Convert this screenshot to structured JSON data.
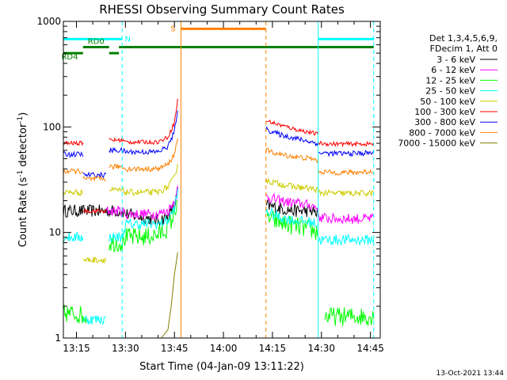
{
  "chart_data": {
    "type": "line",
    "title": "RHESSI Observing Summary Count Rates",
    "xlabel": "Start Time (04-Jan-09 13:11:22)",
    "ylabel_main": "Count Rate (s",
    "ylabel_sup1": "-1",
    "ylabel_mid": " detector",
    "ylabel_sup2": "-1",
    "ylabel_end": ")",
    "y_scale": "log",
    "xlim": [
      "13:11",
      "14:48"
    ],
    "ylim": [
      1,
      1000
    ],
    "x_ticks": [
      "13:15",
      "13:30",
      "13:45",
      "14:00",
      "14:15",
      "14:30",
      "14:45"
    ],
    "y_ticks": [
      {
        "value": 1,
        "label": "1"
      },
      {
        "value": 10,
        "label": "10"
      },
      {
        "value": 100,
        "label": "100"
      },
      {
        "value": 1000,
        "label": "1000"
      }
    ],
    "legend_header": [
      "Det 1,3,4,5,6,9,",
      "FDecim 1, Att 0"
    ],
    "legend_position": "right",
    "timestamp": "13-Oct-2021 13:44",
    "flags": [
      {
        "label": "N",
        "color": "#00ffff",
        "segments": [
          [
            "13:11",
            "13:29"
          ],
          [
            "14:29",
            "14:46"
          ]
        ],
        "level": 680
      },
      {
        "label": "S",
        "color": "#ff8000",
        "segments": [
          [
            "13:47",
            "14:13"
          ]
        ],
        "level": 850
      },
      {
        "label": "RD0",
        "color": "#008000",
        "segments": [
          [
            "13:17",
            "13:25"
          ]
        ],
        "level": 570
      },
      {
        "label": "RD4",
        "color": "#008000",
        "segments": [
          [
            "13:11",
            "13:17"
          ],
          [
            "13:25",
            "13:28"
          ]
        ],
        "level": 500
      },
      {
        "label": "",
        "color": "#008000",
        "segments": [
          [
            "13:28",
            "14:46"
          ]
        ],
        "level": 570
      }
    ],
    "vlines": [
      {
        "time": "13:29",
        "color": "#00ffff",
        "style": "dashed"
      },
      {
        "time": "14:46",
        "color": "#00ffff",
        "style": "dashed"
      },
      {
        "time": "13:11",
        "color": "#00ffff",
        "style": "solid"
      },
      {
        "time": "14:29",
        "color": "#00ffff",
        "style": "solid"
      },
      {
        "time": "13:47",
        "color": "#ff8000",
        "style": "solid"
      },
      {
        "time": "14:13",
        "color": "#ff8000",
        "style": "dashed"
      }
    ],
    "series": [
      {
        "name": "3 - 6 keV",
        "color": "#000000",
        "noise": 0.06,
        "segments": [
          {
            "x": [
              "13:11",
              "13:17",
              "13:17",
              "13:24",
              "13:25",
              "13:29",
              "13:30",
              "13:35",
              "13:40",
              "13:43",
              "13:45",
              "13:46"
            ],
            "y": [
              16,
              16,
              16,
              16,
              16,
              16,
              15,
              14,
              13,
              14,
              18,
              24
            ]
          },
          {
            "x": [
              "14:13",
              "14:17",
              "14:22",
              "14:27",
              "14:29"
            ],
            "y": [
              18,
              17,
              16,
              16,
              15
            ]
          }
        ]
      },
      {
        "name": "6 - 12 keV",
        "color": "#ff00ff",
        "noise": 0.05,
        "segments": [
          {
            "x": [
              "13:24",
              "13:29",
              "13:30",
              "13:35",
              "13:40",
              "13:43",
              "13:45",
              "13:46"
            ],
            "y": [
              16,
              16,
              15,
              15,
              15,
              16,
              20,
              26
            ]
          },
          {
            "x": [
              "14:13",
              "14:17",
              "14:22",
              "14:27",
              "14:29"
            ],
            "y": [
              22,
              20,
              19,
              18,
              17
            ]
          },
          {
            "x": [
              "14:29",
              "14:33",
              "14:40",
              "14:46"
            ],
            "y": [
              14,
              13.5,
              13.5,
              13.5
            ]
          }
        ]
      },
      {
        "name": "12 - 25 keV",
        "color": "#00ff00",
        "noise": 0.09,
        "segments": [
          {
            "x": [
              "13:11",
              "13:15",
              "13:18"
            ],
            "y": [
              1.7,
              1.7,
              1.6
            ]
          },
          {
            "x": [
              "13:25",
              "13:29",
              "13:30",
              "13:35",
              "13:40",
              "13:43",
              "13:45",
              "13:46"
            ],
            "y": [
              8,
              8,
              9,
              9,
              9.5,
              11,
              15,
              22
            ]
          },
          {
            "x": [
              "14:13",
              "14:17",
              "14:22",
              "14:27",
              "14:29"
            ],
            "y": [
              14,
              12.5,
              11.5,
              10.5,
              10
            ]
          },
          {
            "x": [
              "14:31",
              "14:35",
              "14:40",
              "14:46"
            ],
            "y": [
              1.6,
              1.6,
              1.6,
              1.6
            ]
          }
        ]
      },
      {
        "name": "25 - 50 keV",
        "color": "#00ffff",
        "noise": 0.05,
        "segments": [
          {
            "x": [
              "13:11",
              "13:17"
            ],
            "y": [
              9,
              9
            ]
          },
          {
            "x": [
              "13:17",
              "13:20",
              "13:24"
            ],
            "y": [
              1.5,
              1.5,
              1.5
            ]
          },
          {
            "x": [
              "13:25",
              "13:29",
              "13:30",
              "13:35",
              "13:40",
              "13:43",
              "13:45",
              "13:46"
            ],
            "y": [
              9,
              9,
              12,
              12,
              12,
              13,
              17,
              24
            ]
          },
          {
            "x": [
              "14:13",
              "14:17",
              "14:22",
              "14:27",
              "14:29"
            ],
            "y": [
              16,
              14,
              13,
              12.5,
              12
            ]
          },
          {
            "x": [
              "14:29",
              "14:33",
              "14:40",
              "14:46"
            ],
            "y": [
              8.5,
              8.5,
              8.5,
              8.5
            ]
          }
        ]
      },
      {
        "name": "50 - 100 keV",
        "color": "#cccc00",
        "noise": 0.03,
        "segments": [
          {
            "x": [
              "13:11",
              "13:17"
            ],
            "y": [
              24,
              24
            ]
          },
          {
            "x": [
              "13:17",
              "13:24"
            ],
            "y": [
              5.5,
              5.5
            ]
          },
          {
            "x": [
              "13:25",
              "13:29",
              "13:30",
              "13:35",
              "13:40",
              "13:43",
              "13:45",
              "13:46"
            ],
            "y": [
              25,
              25,
              24,
              24,
              24,
              27,
              33,
              45
            ]
          },
          {
            "x": [
              "14:13",
              "14:17",
              "14:22",
              "14:27",
              "14:29"
            ],
            "y": [
              31,
              29,
              27,
              26,
              25
            ]
          },
          {
            "x": [
              "14:29",
              "14:33",
              "14:40",
              "14:46"
            ],
            "y": [
              24,
              23.5,
              23.5,
              23.5
            ]
          }
        ]
      },
      {
        "name": "100 - 300 keV",
        "color": "#ff0000",
        "noise": 0.02,
        "segments": [
          {
            "x": [
              "13:11",
              "13:17"
            ],
            "y": [
              70,
              70
            ]
          },
          {
            "x": [
              "13:17",
              "13:24"
            ],
            "y": [
              16,
              16
            ]
          },
          {
            "x": [
              "13:25",
              "13:29",
              "13:30",
              "13:35",
              "13:40",
              "13:43",
              "13:45",
              "13:46"
            ],
            "y": [
              75,
              75,
              72,
              72,
              72,
              80,
              110,
              180
            ]
          },
          {
            "x": [
              "14:13",
              "14:17",
              "14:22",
              "14:27",
              "14:29"
            ],
            "y": [
              115,
              105,
              95,
              88,
              85
            ]
          },
          {
            "x": [
              "14:29",
              "14:33",
              "14:40",
              "14:46"
            ],
            "y": [
              70,
              69,
              69,
              69
            ]
          }
        ]
      },
      {
        "name": "300 - 800 keV",
        "color": "#0000ff",
        "noise": 0.025,
        "segments": [
          {
            "x": [
              "13:11",
              "13:17"
            ],
            "y": [
              55,
              55
            ]
          },
          {
            "x": [
              "13:17",
              "13:24"
            ],
            "y": [
              35,
              35
            ]
          },
          {
            "x": [
              "13:25",
              "13:29",
              "13:30",
              "13:35",
              "13:40",
              "13:43",
              "13:45",
              "13:46"
            ],
            "y": [
              60,
              60,
              58,
              58,
              58,
              65,
              90,
              150
            ]
          },
          {
            "x": [
              "14:13",
              "14:17",
              "14:22",
              "14:27",
              "14:29"
            ],
            "y": [
              95,
              85,
              78,
              72,
              70
            ]
          },
          {
            "x": [
              "14:29",
              "14:33",
              "14:40",
              "14:46"
            ],
            "y": [
              57,
              56,
              56,
              57
            ]
          }
        ]
      },
      {
        "name": "800 - 7000 keV",
        "color": "#ff8000",
        "noise": 0.025,
        "segments": [
          {
            "x": [
              "13:11",
              "13:17"
            ],
            "y": [
              38,
              38
            ]
          },
          {
            "x": [
              "13:17",
              "13:24"
            ],
            "y": [
              32,
              32
            ]
          },
          {
            "x": [
              "13:25",
              "13:29",
              "13:30",
              "13:35",
              "13:40",
              "13:43",
              "13:45",
              "13:46"
            ],
            "y": [
              42,
              42,
              40,
              40,
              40,
              44,
              55,
              80
            ]
          },
          {
            "x": [
              "14:13",
              "14:17",
              "14:22",
              "14:27",
              "14:29"
            ],
            "y": [
              60,
              55,
              52,
              50,
              48
            ]
          },
          {
            "x": [
              "14:29",
              "14:33",
              "14:40",
              "14:46"
            ],
            "y": [
              38,
              37,
              37,
              38
            ]
          }
        ]
      },
      {
        "name": "7000 - 15000 keV",
        "color": "#808000",
        "noise": 0.0,
        "segments": [
          {
            "x": [
              "13:41",
              "13:43",
              "13:44",
              "13:45",
              "13:46"
            ],
            "y": [
              1,
              1.2,
              2,
              4,
              6.5
            ]
          }
        ]
      }
    ]
  }
}
